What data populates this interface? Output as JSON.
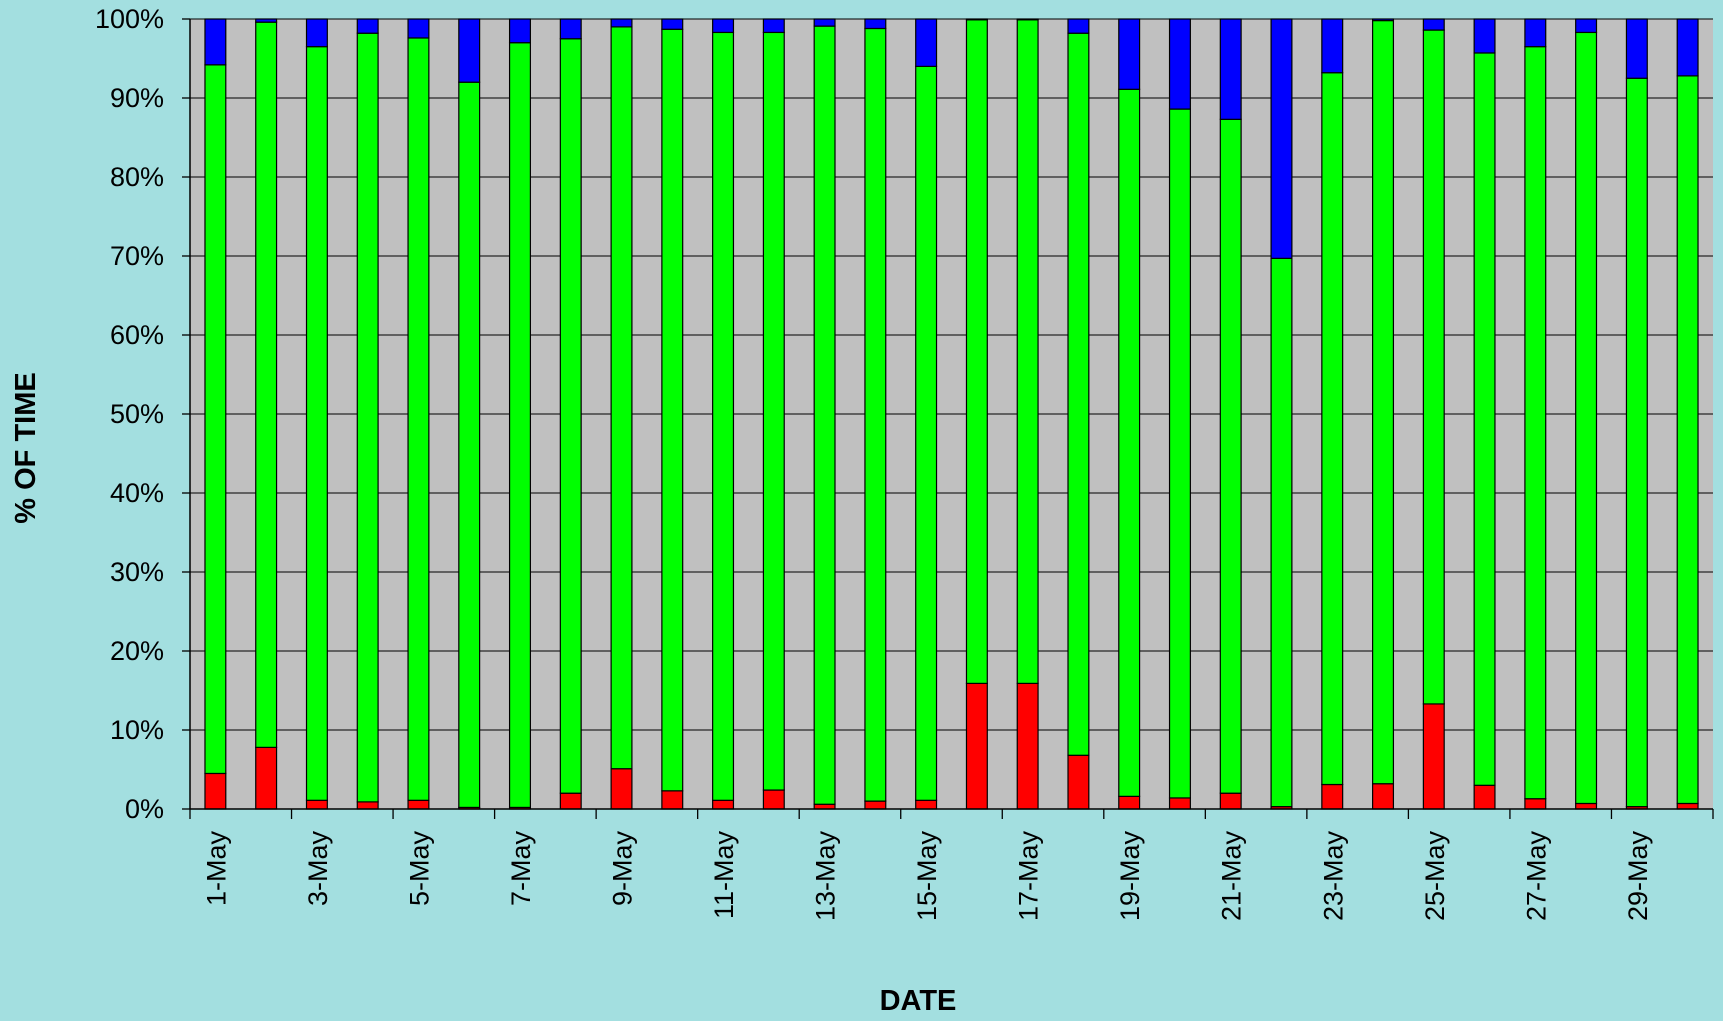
{
  "chart_data": {
    "type": "bar",
    "stacked": true,
    "xlabel": "DATE",
    "ylabel": "% OF TIME",
    "ylim": [
      0,
      100
    ],
    "y_ticks": [
      "0%",
      "10%",
      "20%",
      "30%",
      "40%",
      "50%",
      "60%",
      "70%",
      "80%",
      "90%",
      "100%"
    ],
    "grid": true,
    "legend": "none",
    "categories": [
      "1-May",
      "2-May",
      "3-May",
      "4-May",
      "5-May",
      "6-May",
      "7-May",
      "8-May",
      "9-May",
      "10-May",
      "11-May",
      "12-May",
      "13-May",
      "14-May",
      "15-May",
      "16-May",
      "17-May",
      "18-May",
      "19-May",
      "20-May",
      "21-May",
      "22-May",
      "23-May",
      "24-May",
      "25-May",
      "26-May",
      "27-May",
      "28-May",
      "29-May",
      "30-May"
    ],
    "tick_labels": [
      "1-May",
      "3-May",
      "5-May",
      "7-May",
      "9-May",
      "11-May",
      "13-May",
      "15-May",
      "17-May",
      "19-May",
      "21-May",
      "23-May",
      "25-May",
      "27-May",
      "29-May"
    ],
    "series": [
      {
        "color": "#ff0000",
        "values": [
          4.5,
          7.8,
          1.1,
          0.9,
          1.1,
          0.2,
          0.2,
          2.0,
          5.1,
          2.3,
          1.1,
          2.4,
          0.6,
          1.0,
          1.1,
          15.9,
          15.9,
          6.8,
          1.6,
          1.4,
          2.0,
          0.3,
          3.1,
          3.2,
          13.3,
          3.0,
          1.3,
          0.7,
          0.3,
          0.7
        ]
      },
      {
        "color": "#00ff00",
        "values": [
          89.7,
          91.8,
          95.4,
          97.3,
          96.5,
          91.8,
          96.8,
          95.5,
          93.9,
          96.4,
          97.2,
          95.9,
          98.5,
          97.8,
          92.9,
          84.0,
          84.0,
          91.4,
          89.5,
          87.2,
          85.3,
          69.4,
          90.1,
          96.6,
          85.3,
          92.7,
          95.2,
          97.6,
          92.2,
          92.1
        ]
      },
      {
        "color": "#0000ff",
        "values": [
          5.8,
          0.4,
          3.5,
          1.8,
          2.4,
          8.0,
          3.0,
          2.5,
          1.0,
          1.3,
          1.7,
          1.7,
          0.9,
          1.2,
          6.0,
          0.1,
          0.1,
          1.8,
          8.9,
          11.4,
          12.7,
          30.3,
          6.8,
          0.2,
          1.4,
          4.3,
          3.5,
          1.7,
          7.5,
          7.2
        ]
      }
    ],
    "colors": {
      "page_background": "#a3dfe0",
      "plot_background": "#c0c0c0",
      "gridline": "#000000"
    }
  }
}
